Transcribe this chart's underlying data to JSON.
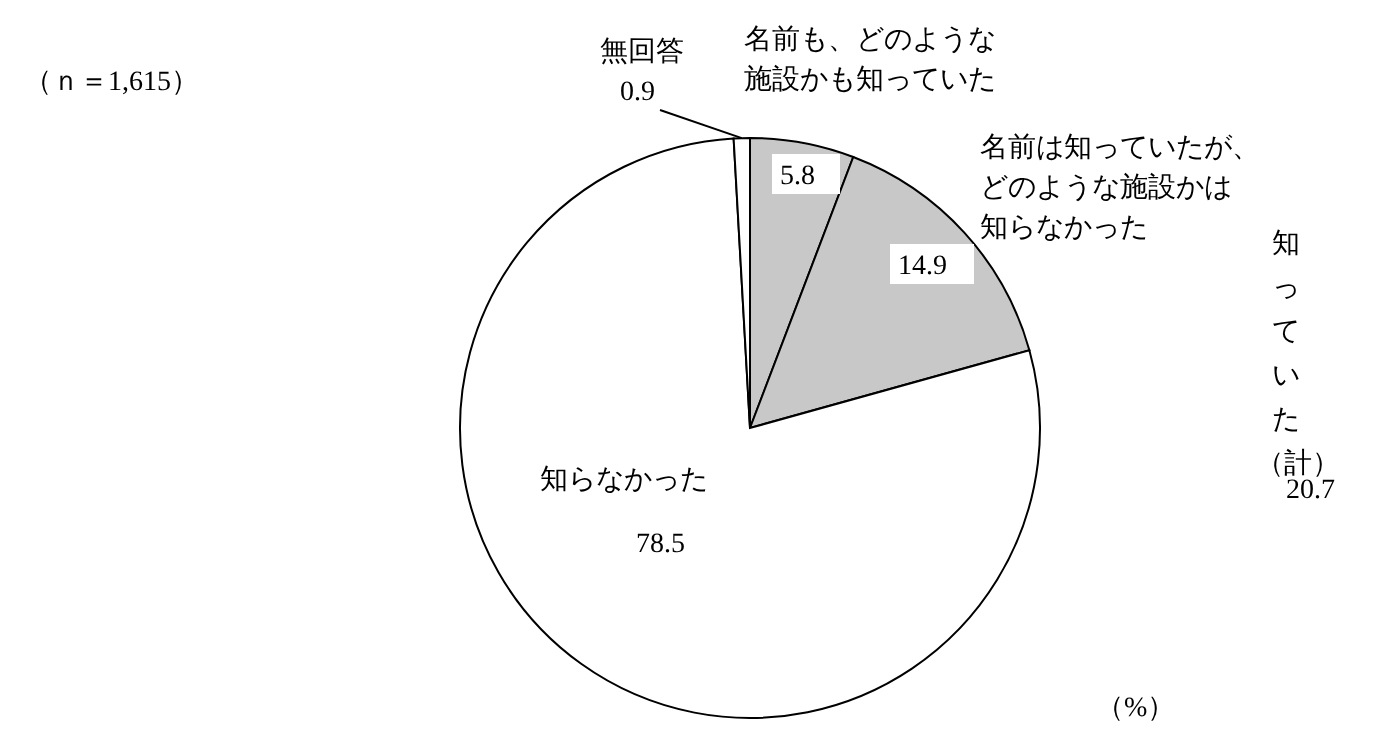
{
  "chart_data": {
    "type": "pie",
    "categories": [
      "名前も、どのような施設かも知っていた",
      "名前は知っていたが、どのような施設かは知らなかった",
      "知らなかった",
      "無回答"
    ],
    "values": [
      5.8,
      14.9,
      78.5,
      0.9
    ],
    "colors": [
      "#c8c8c8",
      "#c8c8c8",
      "#ffffff",
      "#ffffff"
    ],
    "data_labels": true,
    "legend": false,
    "annotations": [
      "（ｎ＝1,615）",
      "知っていた（計）",
      "20.7",
      "（%）"
    ]
  }
}
